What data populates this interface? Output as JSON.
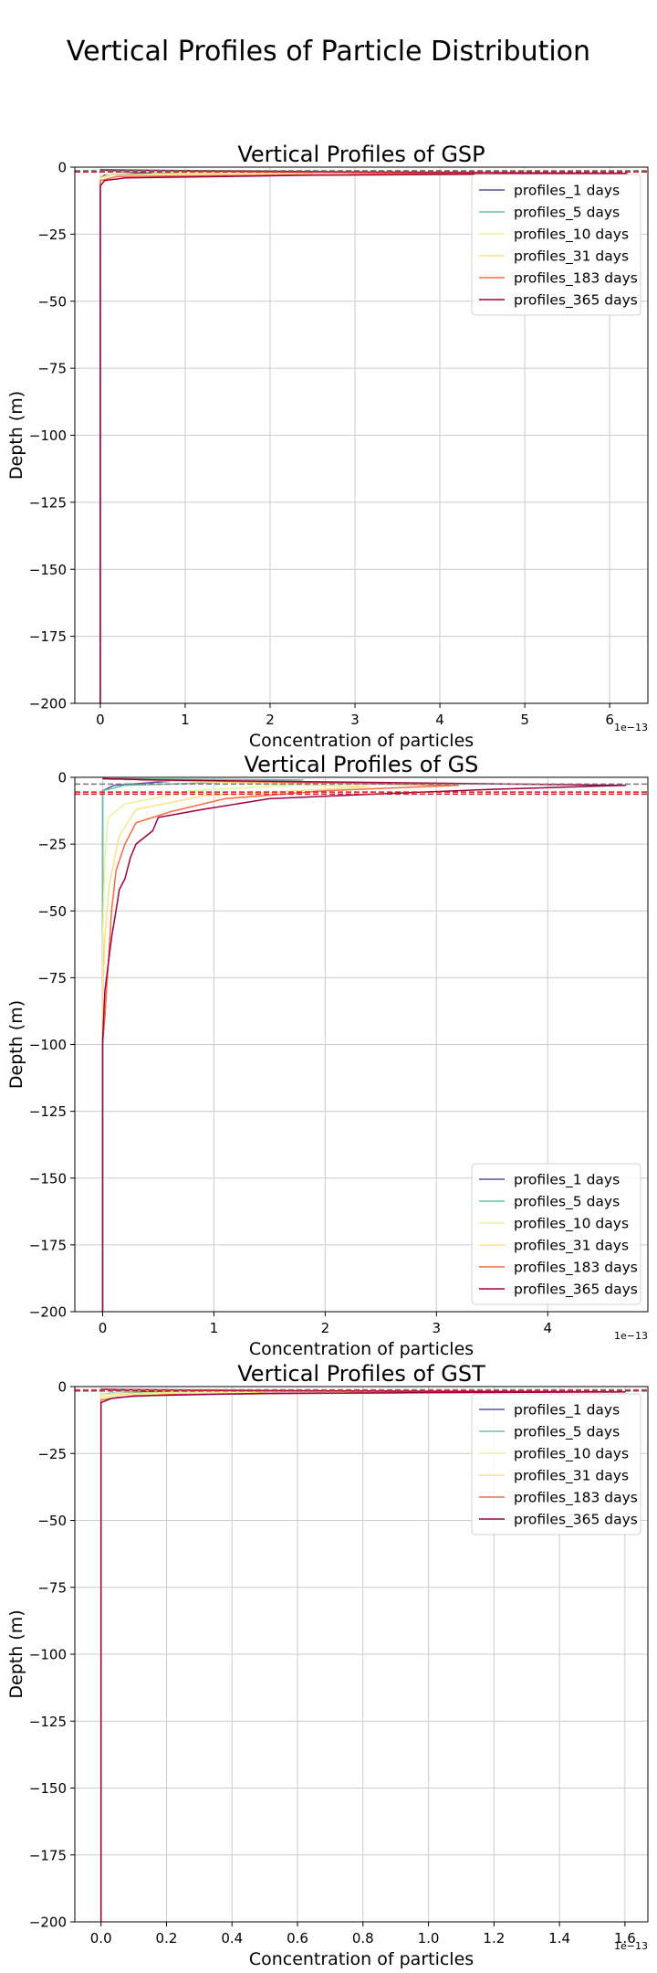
{
  "figure": {
    "suptitle": "Vertical Profiles of Particle Distribution"
  },
  "colors": {
    "profiles_1 days": "#5e4fa2",
    "profiles_5 days": "#66c2a5",
    "profiles_10 days": "#e6f598",
    "profiles_31 days": "#fee08b",
    "profiles_183 days": "#f46d43",
    "profiles_365 days": "#9e0142",
    "grid": "#cccccc",
    "ref_line_grey": "#777777",
    "ref_line_red": "#d7191c"
  },
  "chart_data": [
    {
      "type": "line",
      "title": "Vertical Profiles of GSP",
      "xlabel": "Concentration of particles",
      "ylabel": "Depth (m)",
      "x_offset_text": "1e−13",
      "xlim": [
        -0.3,
        6.45
      ],
      "ylim": [
        -200,
        0
      ],
      "xticks": [
        0,
        1,
        2,
        3,
        4,
        5,
        6
      ],
      "yticks": [
        0,
        -25,
        -50,
        -75,
        -100,
        -125,
        -150,
        -175,
        -200
      ],
      "grid": true,
      "legend_position": "top-right",
      "reference_lines": [
        {
          "y": -1.3,
          "color": "grey"
        },
        {
          "y": -1.8,
          "color": "red"
        }
      ],
      "series": [
        {
          "name": "profiles_1 days",
          "points": [
            [
              0,
              -200
            ],
            [
              0,
              -4
            ],
            [
              0.05,
              -3
            ],
            [
              0.6,
              -2.3
            ],
            [
              0.3,
              -1.8
            ],
            [
              0,
              -1
            ]
          ]
        },
        {
          "name": "profiles_5 days",
          "points": [
            [
              0,
              -200
            ],
            [
              0,
              -4
            ],
            [
              0.08,
              -3
            ],
            [
              1.0,
              -2.3
            ],
            [
              0.5,
              -1.8
            ],
            [
              0,
              -1
            ]
          ]
        },
        {
          "name": "profiles_10 days",
          "points": [
            [
              0,
              -200
            ],
            [
              0,
              -4
            ],
            [
              0.1,
              -3
            ],
            [
              1.5,
              -2.3
            ],
            [
              0.7,
              -1.8
            ],
            [
              0,
              -1
            ]
          ]
        },
        {
          "name": "profiles_31 days",
          "points": [
            [
              0,
              -200
            ],
            [
              0,
              -4
            ],
            [
              0.15,
              -3
            ],
            [
              2.5,
              -2.3
            ],
            [
              1.2,
              -1.8
            ],
            [
              0,
              -1
            ]
          ]
        },
        {
          "name": "profiles_183 days",
          "points": [
            [
              0,
              -200
            ],
            [
              0,
              -5
            ],
            [
              0.2,
              -3.5
            ],
            [
              4.5,
              -2.3
            ],
            [
              2.0,
              -1.8
            ],
            [
              0,
              -1
            ]
          ]
        },
        {
          "name": "profiles_365 days",
          "points": [
            [
              0,
              -200
            ],
            [
              0,
              -7
            ],
            [
              0.05,
              -5
            ],
            [
              0.3,
              -4
            ],
            [
              2.5,
              -3
            ],
            [
              6.2,
              -2.3
            ],
            [
              3.0,
              -1.8
            ],
            [
              0,
              -1
            ]
          ]
        }
      ]
    },
    {
      "type": "line",
      "title": "Vertical Profiles of GS",
      "xlabel": "Concentration of particles",
      "ylabel": "Depth (m)",
      "x_offset_text": "1e−13",
      "xlim": [
        -0.25,
        4.9
      ],
      "ylim": [
        -200,
        0
      ],
      "xticks": [
        0,
        1,
        2,
        3,
        4
      ],
      "yticks": [
        0,
        -25,
        -50,
        -75,
        -100,
        -125,
        -150,
        -175,
        -200
      ],
      "grid": true,
      "legend_position": "bottom-right",
      "reference_lines": [
        {
          "y": -2.5,
          "color": "grey"
        },
        {
          "y": -5.5,
          "color": "red"
        },
        {
          "y": -6.3,
          "color": "red"
        }
      ],
      "series": [
        {
          "name": "profiles_1 days",
          "points": [
            [
              0,
              -200
            ],
            [
              0,
              -5
            ],
            [
              0.1,
              -3
            ],
            [
              0.6,
              -1.5
            ],
            [
              0,
              -0.5
            ]
          ]
        },
        {
          "name": "profiles_5 days",
          "points": [
            [
              0,
              -200
            ],
            [
              0,
              -5
            ],
            [
              0.2,
              -3
            ],
            [
              1.0,
              -2
            ],
            [
              1.8,
              -1
            ],
            [
              0,
              -0.5
            ]
          ]
        },
        {
          "name": "profiles_10 days",
          "points": [
            [
              0,
              -200
            ],
            [
              0,
              -60
            ],
            [
              0.02,
              -30
            ],
            [
              0.05,
              -15
            ],
            [
              0.2,
              -10
            ],
            [
              0.8,
              -5
            ],
            [
              1.9,
              -2.5
            ],
            [
              0,
              -0.5
            ]
          ]
        },
        {
          "name": "profiles_31 days",
          "points": [
            [
              0,
              -200
            ],
            [
              0,
              -85
            ],
            [
              0.02,
              -60
            ],
            [
              0.06,
              -40
            ],
            [
              0.15,
              -22
            ],
            [
              0.3,
              -12
            ],
            [
              0.9,
              -7
            ],
            [
              2.4,
              -3.5
            ],
            [
              0.3,
              -1
            ],
            [
              0,
              -0.5
            ]
          ]
        },
        {
          "name": "profiles_183 days",
          "points": [
            [
              0,
              -200
            ],
            [
              0,
              -100
            ],
            [
              0.02,
              -90
            ],
            [
              0.05,
              -70
            ],
            [
              0.08,
              -50
            ],
            [
              0.12,
              -35
            ],
            [
              0.2,
              -25
            ],
            [
              0.3,
              -17
            ],
            [
              0.6,
              -13
            ],
            [
              1.1,
              -8
            ],
            [
              2.0,
              -5
            ],
            [
              3.2,
              -3
            ],
            [
              0.5,
              -1
            ],
            [
              0,
              -0.5
            ]
          ]
        },
        {
          "name": "profiles_365 days",
          "points": [
            [
              0,
              -200
            ],
            [
              0,
              -98
            ],
            [
              0.02,
              -80
            ],
            [
              0.05,
              -70
            ],
            [
              0.08,
              -60
            ],
            [
              0.12,
              -50
            ],
            [
              0.15,
              -42
            ],
            [
              0.2,
              -38
            ],
            [
              0.25,
              -30
            ],
            [
              0.3,
              -25
            ],
            [
              0.45,
              -20
            ],
            [
              0.5,
              -15
            ],
            [
              0.9,
              -12
            ],
            [
              1.5,
              -8
            ],
            [
              2.6,
              -6
            ],
            [
              3.5,
              -4.5
            ],
            [
              4.7,
              -3
            ],
            [
              0.5,
              -1
            ],
            [
              0,
              -0.5
            ]
          ]
        }
      ]
    },
    {
      "type": "line",
      "title": "Vertical Profiles of GST",
      "xlabel": "Concentration of particles",
      "ylabel": "Depth (m)",
      "x_offset_text": "1e−13",
      "xlim": [
        -0.08,
        1.67
      ],
      "ylim": [
        -200,
        0
      ],
      "xticks": [
        0.0,
        0.2,
        0.4,
        0.6,
        0.8,
        1.0,
        1.2,
        1.4,
        1.6
      ],
      "xtick_labels": [
        "0.0",
        "0.2",
        "0.4",
        "0.6",
        "0.8",
        "1.0",
        "1.2",
        "1.4",
        "1.6"
      ],
      "yticks": [
        0,
        -25,
        -50,
        -75,
        -100,
        -125,
        -150,
        -175,
        -200
      ],
      "grid": true,
      "legend_position": "top-right",
      "reference_lines": [
        {
          "y": -1.2,
          "color": "grey"
        },
        {
          "y": -1.6,
          "color": "red"
        }
      ],
      "series": [
        {
          "name": "profiles_1 days",
          "points": [
            [
              0,
              -200
            ],
            [
              0,
              -3
            ],
            [
              0.03,
              -2.5
            ],
            [
              0.2,
              -2
            ],
            [
              0.05,
              -1.5
            ],
            [
              0,
              -1
            ]
          ]
        },
        {
          "name": "profiles_5 days",
          "points": [
            [
              0,
              -200
            ],
            [
              0,
              -3
            ],
            [
              0.05,
              -2.5
            ],
            [
              0.35,
              -2
            ],
            [
              0.1,
              -1.5
            ],
            [
              0,
              -1
            ]
          ]
        },
        {
          "name": "profiles_10 days",
          "points": [
            [
              0,
              -200
            ],
            [
              0,
              -3
            ],
            [
              0.05,
              -2.5
            ],
            [
              0.5,
              -2
            ],
            [
              0.15,
              -1.5
            ],
            [
              0,
              -1
            ]
          ]
        },
        {
          "name": "profiles_31 days",
          "points": [
            [
              0,
              -200
            ],
            [
              0,
              -4
            ],
            [
              0.06,
              -3
            ],
            [
              0.8,
              -2
            ],
            [
              0.2,
              -1.5
            ],
            [
              0,
              -1
            ]
          ]
        },
        {
          "name": "profiles_183 days",
          "points": [
            [
              0,
              -200
            ],
            [
              0,
              -5
            ],
            [
              0.05,
              -4
            ],
            [
              0.2,
              -3
            ],
            [
              1.3,
              -2
            ],
            [
              0.4,
              -1.5
            ],
            [
              0,
              -1
            ]
          ]
        },
        {
          "name": "profiles_365 days",
          "points": [
            [
              0,
              -200
            ],
            [
              0,
              -6
            ],
            [
              0.03,
              -4.5
            ],
            [
              0.1,
              -3.5
            ],
            [
              0.5,
              -2.5
            ],
            [
              1.6,
              -2
            ],
            [
              0.5,
              -1.5
            ],
            [
              0,
              -1
            ]
          ]
        }
      ]
    }
  ]
}
